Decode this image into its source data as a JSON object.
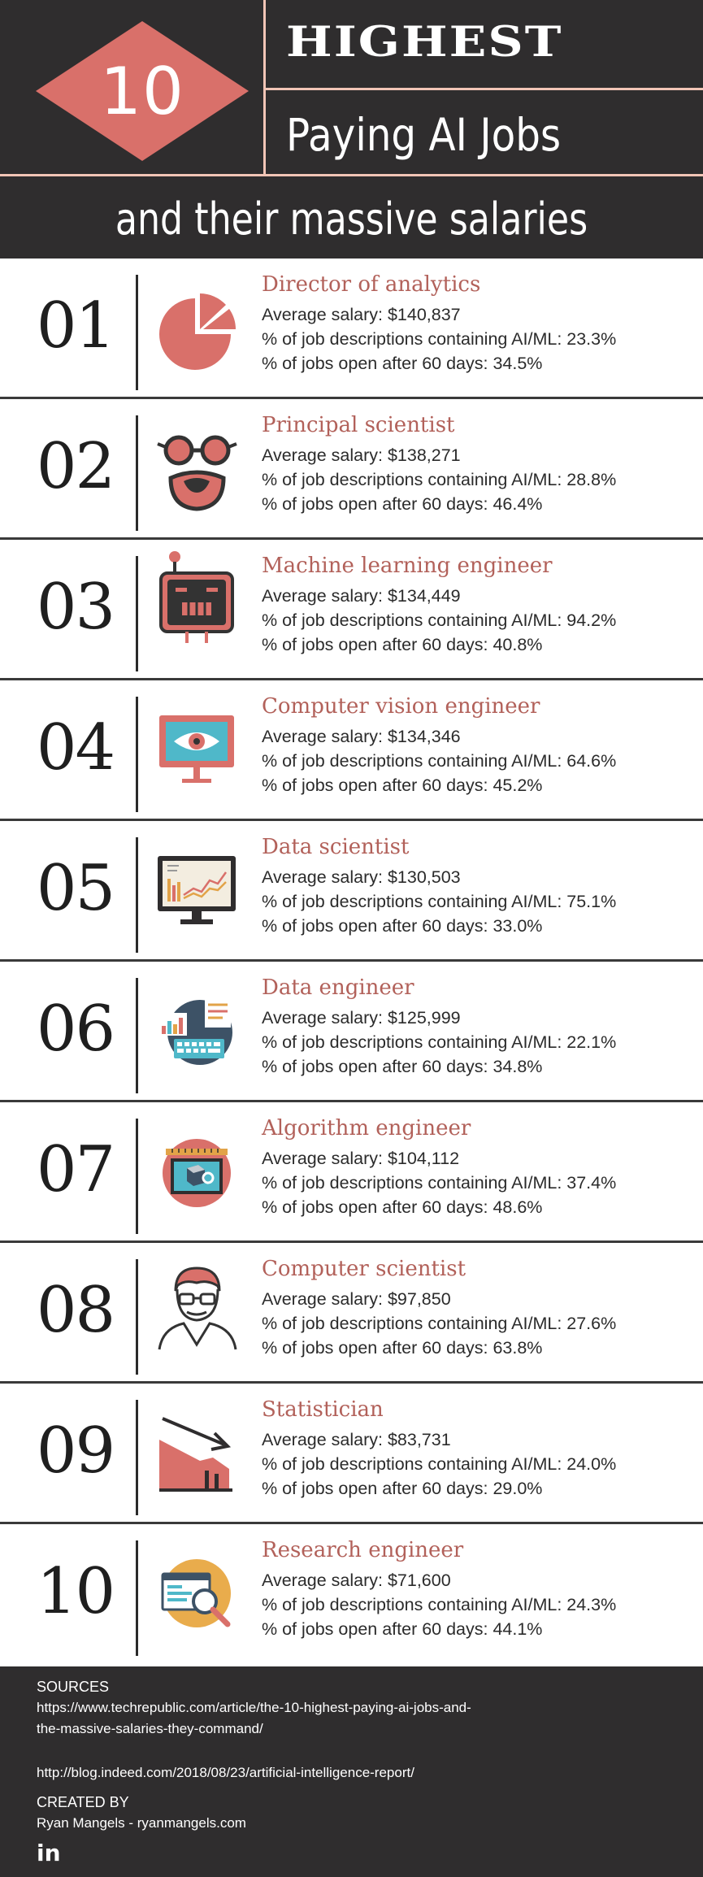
{
  "header": {
    "number": "10",
    "title_line1": "HIGHEST",
    "title_line2": "Paying AI Jobs",
    "subtitle": "and their massive salaries"
  },
  "colors": {
    "dark_bg": "#2f2d2e",
    "accent": "#d9706a",
    "title_color": "#b2615a",
    "divider": "#f2c5b6"
  },
  "jobs": [
    {
      "rank": "01",
      "title": "Director of analytics",
      "icon": "pie-chart-icon",
      "salary": "Average salary: $140,837",
      "ai_ml": "% of job descriptions containing AI/ML: 23.3%",
      "open": "% of jobs open after 60 days: 34.5%"
    },
    {
      "rank": "02",
      "title": "Principal scientist",
      "icon": "glasses-beard-icon",
      "salary": "Average salary: $138,271",
      "ai_ml": "% of job descriptions containing AI/ML: 28.8%",
      "open": "% of jobs open after 60 days: 46.4%"
    },
    {
      "rank": "03",
      "title": "Machine learning engineer",
      "icon": "robot-icon",
      "salary": "Average salary: $134,449",
      "ai_ml": "% of job descriptions containing AI/ML: 94.2%",
      "open": "% of jobs open after 60 days: 40.8%"
    },
    {
      "rank": "04",
      "title": "Computer vision engineer",
      "icon": "eye-monitor-icon",
      "salary": "Average salary: $134,346",
      "ai_ml": "% of job descriptions containing AI/ML: 64.6%",
      "open": "% of jobs open after 60 days: 45.2%"
    },
    {
      "rank": "05",
      "title": "Data scientist",
      "icon": "chart-monitor-icon",
      "salary": "Average salary: $130,503",
      "ai_ml": "% of job descriptions containing AI/ML: 75.1%",
      "open": "% of jobs open after 60 days: 33.0%"
    },
    {
      "rank": "06",
      "title": "Data engineer",
      "icon": "keyboard-report-icon",
      "salary": "Average salary: $125,999",
      "ai_ml": "% of job descriptions containing AI/ML: 22.1%",
      "open": "% of jobs open after 60 days: 34.8%"
    },
    {
      "rank": "07",
      "title": "Algorithm engineer",
      "icon": "cube-blueprint-icon",
      "salary": "Average salary: $104,112",
      "ai_ml": "% of job descriptions containing AI/ML: 37.4%",
      "open": "% of jobs open after 60 days: 48.6%"
    },
    {
      "rank": "08",
      "title": "Computer scientist",
      "icon": "person-glasses-icon",
      "salary": "Average salary: $97,850",
      "ai_ml": "% of job descriptions containing AI/ML: 27.6%",
      "open": "% of jobs open after 60 days: 63.8%"
    },
    {
      "rank": "09",
      "title": "Statistician",
      "icon": "declining-chart-icon",
      "salary": "Average salary: $83,731",
      "ai_ml": "% of job descriptions containing AI/ML: 24.0%",
      "open": "% of jobs open after 60 days: 29.0%"
    },
    {
      "rank": "10",
      "title": "Research engineer",
      "icon": "magnifier-screen-icon",
      "salary": "Average salary: $71,600",
      "ai_ml": "% of job descriptions containing AI/ML: 24.3%",
      "open": "% of jobs open after 60 days: 44.1%"
    }
  ],
  "footer": {
    "sources_label": "SOURCES",
    "source1": "https://www.techrepublic.com/article/the-10-highest-paying-ai-jobs-and-the-massive-salaries-they-command/",
    "source2": "http://blog.indeed.com/2018/08/23/artificial-intelligence-report/",
    "created_label": "CREATED BY",
    "author": "Ryan Mangels - ryanmangels.com",
    "social_icon": "linkedin-icon",
    "social_text": "in"
  }
}
